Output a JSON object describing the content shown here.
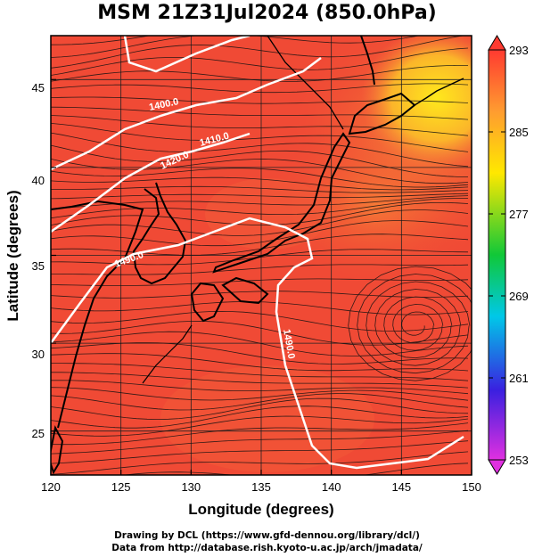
{
  "title": "MSM 21Z31Jul2024 (850.0hPa)",
  "xaxis": {
    "label": "Longitude (degrees)",
    "range": [
      120,
      150
    ],
    "ticks": [
      "120",
      "125",
      "130",
      "135",
      "140",
      "145",
      "150"
    ]
  },
  "yaxis": {
    "label": "Latitude  (degrees)",
    "range": [
      22.5,
      47.5
    ],
    "ticks": [
      "25",
      "30",
      "35",
      "40",
      "45"
    ]
  },
  "colorbar": {
    "range": [
      253,
      293
    ],
    "ticks": [
      "293",
      "285",
      "277",
      "269",
      "261",
      "253"
    ]
  },
  "contours": [
    {
      "label": "1400.0"
    },
    {
      "label": "1410.0"
    },
    {
      "label": "1420.0"
    },
    {
      "label": "1490.0"
    },
    {
      "label": "1490.0"
    }
  ],
  "credits": {
    "line1": "Drawing by DCL (https://www.gfd-dennou.org/library/dcl/)",
    "line2": "Data from http://database.rish.kyoto-u.ac.jp/arch/jmadata/"
  },
  "colors": {
    "field_main": "#f04a35",
    "field_warm": "#f5763a",
    "field_cool": "#ffd21e",
    "contour": "#ffffff",
    "coast": "#000000"
  }
}
